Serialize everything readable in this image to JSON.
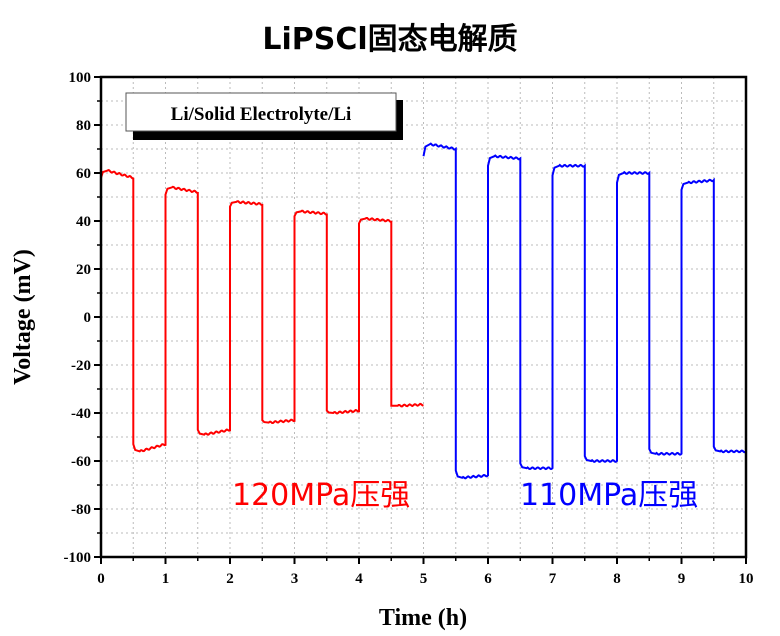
{
  "chart_data": {
    "type": "line",
    "title": "LiPSCl固态电解质",
    "xlabel": "Time (h)",
    "ylabel": "Voltage (mV)",
    "xlim": [
      0,
      10
    ],
    "ylim": [
      -100,
      100
    ],
    "xticks": [
      "0",
      "1",
      "2",
      "3",
      "4",
      "5",
      "6",
      "7",
      "8",
      "9",
      "10"
    ],
    "yticks": [
      "100",
      "80",
      "60",
      "40",
      "20",
      "0",
      "-20",
      "-40",
      "-60",
      "-80",
      "-100"
    ],
    "grid": true,
    "legend_box": "Li/Solid Electrolyte/Li",
    "annotations": [
      {
        "text": "120MPa压强",
        "color": "#ff0000"
      },
      {
        "text": "110MPa压强",
        "color": "#0000ff"
      }
    ],
    "series": [
      {
        "color": "#ff0000",
        "plateaus": [
          [
            0,
            0.5,
            58,
            61,
            58
          ],
          [
            0.5,
            1,
            -53,
            -56,
            -53
          ],
          [
            1,
            1.5,
            51,
            54,
            52
          ],
          [
            1.5,
            2,
            -47,
            -49,
            -47
          ],
          [
            2,
            2.5,
            46,
            48,
            47
          ],
          [
            2.5,
            3,
            -43,
            -44,
            -43
          ],
          [
            3,
            3.5,
            42,
            44,
            43
          ],
          [
            3.5,
            4,
            -39,
            -40,
            -39
          ],
          [
            4,
            4.5,
            39,
            41,
            40
          ],
          [
            4.5,
            5,
            -37,
            -37,
            -36.5
          ]
        ]
      },
      {
        "color": "#0000ff",
        "plateaus": [
          [
            5,
            5.5,
            67,
            72,
            70
          ],
          [
            5.5,
            6,
            -64,
            -67,
            -66
          ],
          [
            6,
            6.5,
            63,
            67,
            66
          ],
          [
            6.5,
            7,
            -61,
            -63,
            -63
          ],
          [
            7,
            7.5,
            59,
            63,
            63
          ],
          [
            7.5,
            8,
            -58,
            -60,
            -60
          ],
          [
            8,
            8.5,
            56,
            60,
            60
          ],
          [
            8.5,
            9,
            -55,
            -57,
            -57
          ],
          [
            9,
            9.5,
            53,
            56,
            57
          ],
          [
            9.5,
            10,
            -54,
            -56,
            -56
          ]
        ]
      }
    ]
  }
}
